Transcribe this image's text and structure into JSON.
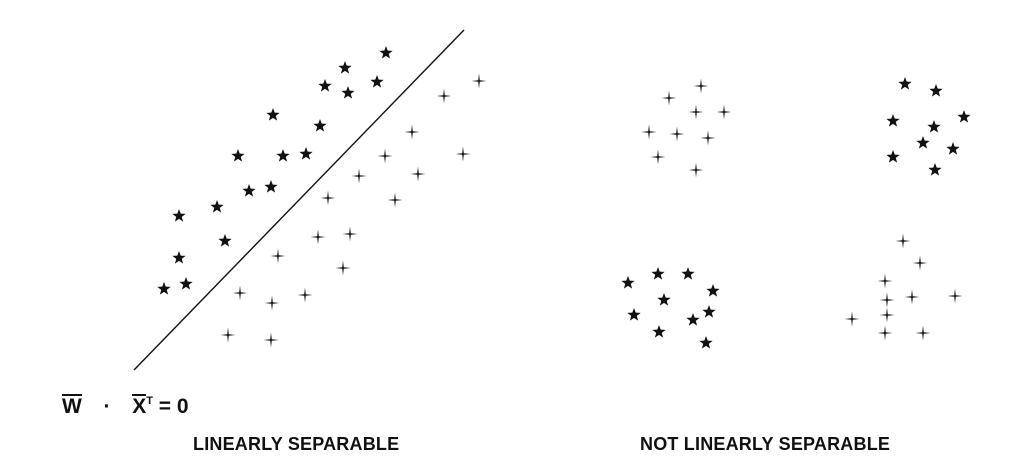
{
  "equation": {
    "w": "W",
    "dot": "·",
    "x": "X",
    "sup": "T",
    "rhs": "= 0"
  },
  "captions": {
    "left": "LINEARLY SEPARABLE",
    "right": "NOT LINEARLY SEPARABLE"
  },
  "marker_icons": {
    "star": "star-icon",
    "cross": "four-point-star-icon"
  },
  "colors": {
    "ink": "#111111",
    "background": "#ffffff"
  }
}
